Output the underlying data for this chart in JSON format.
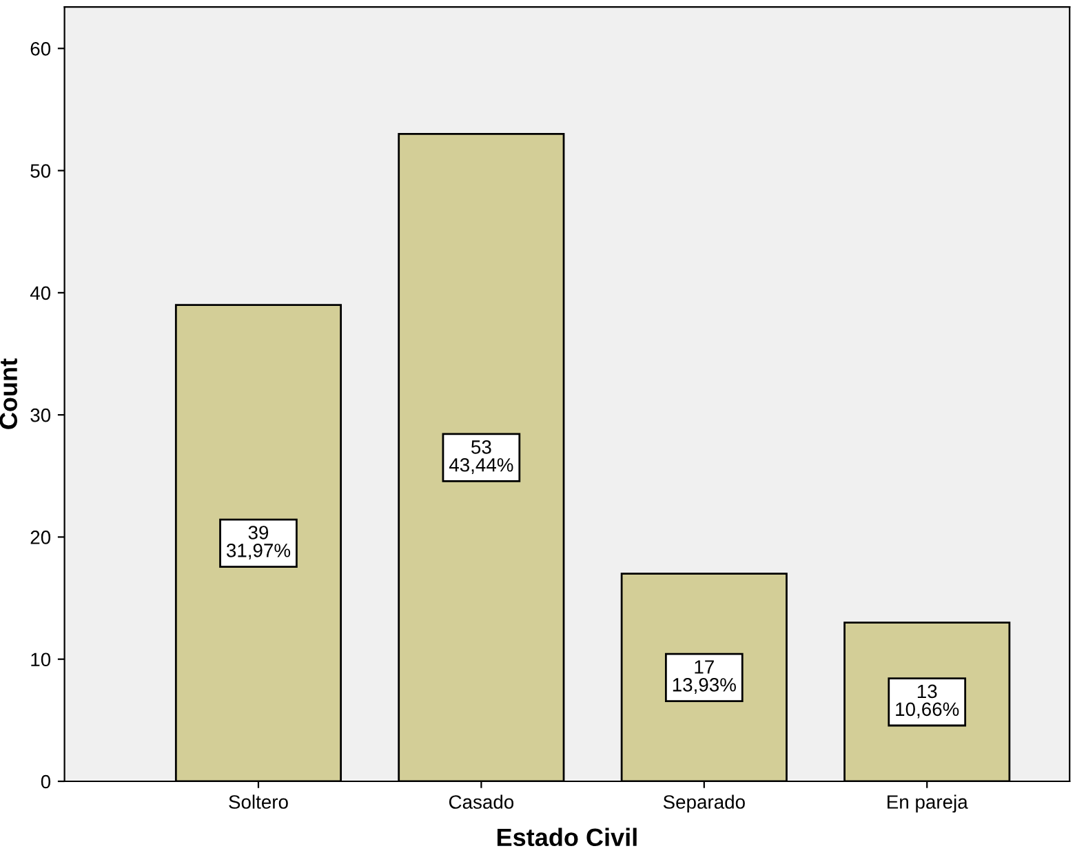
{
  "chart_data": {
    "type": "bar",
    "xlabel": "Estado Civil",
    "ylabel": "Count",
    "categories": [
      "Soltero",
      "Casado",
      "Separado",
      "En pareja"
    ],
    "values": [
      39,
      53,
      17,
      13
    ],
    "value_labels": [
      "39\n31,97%",
      "53\n43,44%",
      "17\n13,93%",
      "13\n10,66%"
    ],
    "color": "#d3ce97",
    "ylim": [
      0,
      63.4
    ],
    "yticks": [
      0,
      10,
      20,
      30,
      40,
      50,
      60
    ],
    "grid": false,
    "legend": false
  }
}
